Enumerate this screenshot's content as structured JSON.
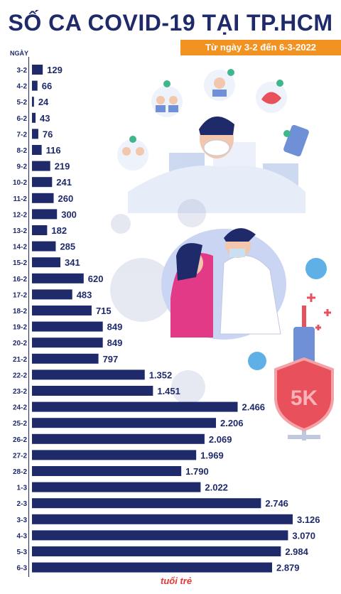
{
  "title": "SỐ CA COVID-19 TẠI TP.HCM",
  "subtitle": "Từ ngày 3-2 đến 6-3-2022",
  "badge_text": "5K",
  "logo": "tuổi trẻ",
  "colors": {
    "bar": "#1f2a6b",
    "accent": "#f29321",
    "title": "#1f2a6b",
    "badge": "#e8505b"
  },
  "chart_data": {
    "type": "bar",
    "orientation": "horizontal",
    "ylabel": "NGÀY",
    "categories": [
      "3-2",
      "4-2",
      "5-2",
      "6-2",
      "7-2",
      "8-2",
      "9-2",
      "10-2",
      "11-2",
      "12-2",
      "13-2",
      "14-2",
      "15-2",
      "16-2",
      "17-2",
      "18-2",
      "19-2",
      "20-2",
      "21-2",
      "22-2",
      "23-2",
      "24-2",
      "25-2",
      "26-2",
      "27-2",
      "28-2",
      "1-3",
      "2-3",
      "3-3",
      "4-3",
      "5-3",
      "6-3"
    ],
    "values": [
      129,
      66,
      24,
      43,
      76,
      116,
      219,
      241,
      260,
      300,
      182,
      285,
      341,
      620,
      483,
      715,
      849,
      849,
      797,
      1352,
      1451,
      2466,
      2206,
      2069,
      1969,
      1790,
      2022,
      2746,
      3126,
      3070,
      2984,
      2879
    ],
    "labels": [
      "129",
      "66",
      "24",
      "43",
      "76",
      "116",
      "219",
      "241",
      "260",
      "300",
      "182",
      "285",
      "341",
      "620",
      "483",
      "715",
      "849",
      "849",
      "797",
      "1.352",
      "1.451",
      "2.466",
      "2.206",
      "2.069",
      "1.969",
      "1.790",
      "2.022",
      "2.746",
      "3.126",
      "3.070",
      "2.984",
      "2.879"
    ],
    "grid": false
  }
}
